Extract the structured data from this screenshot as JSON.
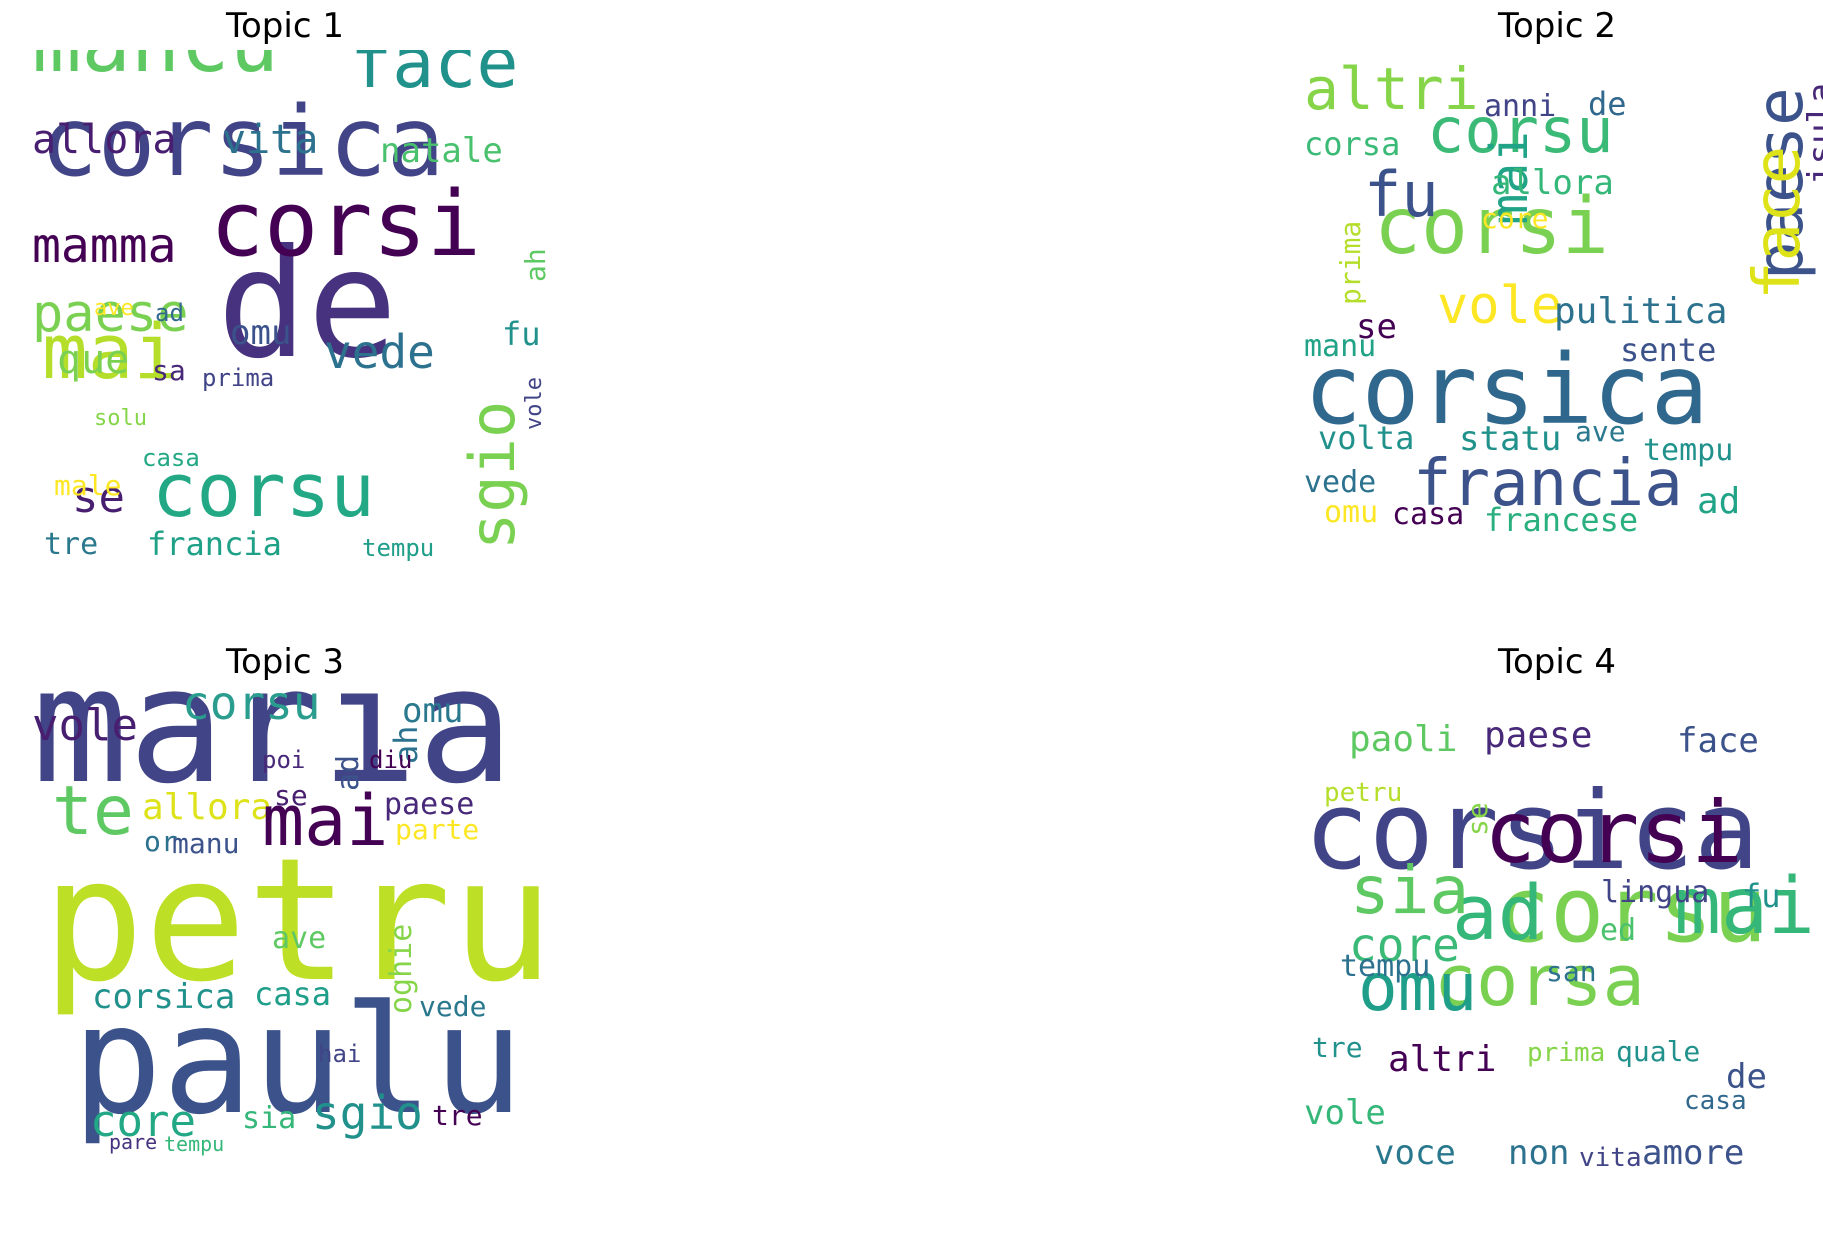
{
  "panels": [
    {
      "title": "Topic 1",
      "words": [
        {
          "text": "de",
          "color": "#46327e"
        },
        {
          "text": "corsica",
          "color": "#414487"
        },
        {
          "text": "corsi",
          "color": "#440154"
        },
        {
          "text": "mancu",
          "color": "#5ec962"
        },
        {
          "text": "face",
          "color": "#21918c"
        },
        {
          "text": "corsu",
          "color": "#22a884"
        },
        {
          "text": "mai",
          "color": "#b5de2b"
        },
        {
          "text": "sgio",
          "color": "#7ad151"
        },
        {
          "text": "paese",
          "color": "#7ad151"
        },
        {
          "text": "mamma",
          "color": "#440154"
        },
        {
          "text": "allora",
          "color": "#481f70"
        },
        {
          "text": "vita",
          "color": "#2c728e"
        },
        {
          "text": "natale",
          "color": "#4ac16d"
        },
        {
          "text": "vede",
          "color": "#2c728e"
        },
        {
          "text": "que",
          "color": "#7ad151"
        },
        {
          "text": "omu",
          "color": "#3b528b"
        },
        {
          "text": "se",
          "color": "#481f70"
        },
        {
          "text": "fu",
          "color": "#21918c"
        },
        {
          "text": "ah",
          "color": "#5ec962"
        },
        {
          "text": "ave",
          "color": "#fde725"
        },
        {
          "text": "ad",
          "color": "#31688e"
        },
        {
          "text": "sa",
          "color": "#482878"
        },
        {
          "text": "prima",
          "color": "#414487"
        },
        {
          "text": "solu",
          "color": "#86d549"
        },
        {
          "text": "vole",
          "color": "#414487"
        },
        {
          "text": "male",
          "color": "#fde725"
        },
        {
          "text": "casa",
          "color": "#22a884"
        },
        {
          "text": "tre",
          "color": "#2a788e"
        },
        {
          "text": "francia",
          "color": "#1fa187"
        },
        {
          "text": "tempu",
          "color": "#1f9e89"
        }
      ]
    },
    {
      "title": "Topic 2",
      "words": [
        {
          "text": "corsica",
          "color": "#30678d"
        },
        {
          "text": "corsu",
          "color": "#3aba76"
        },
        {
          "text": "corsi",
          "color": "#7ad151"
        },
        {
          "text": "altri",
          "color": "#86d549"
        },
        {
          "text": "paese",
          "color": "#3b528b"
        },
        {
          "text": "face",
          "color": "#dde318"
        },
        {
          "text": "fu",
          "color": "#3b528b"
        },
        {
          "text": "mai",
          "color": "#20a386"
        },
        {
          "text": "vole",
          "color": "#fde725"
        },
        {
          "text": "pulitica",
          "color": "#2c728e"
        },
        {
          "text": "francia",
          "color": "#3b528b"
        },
        {
          "text": "anni",
          "color": "#414487"
        },
        {
          "text": "de",
          "color": "#31688e"
        },
        {
          "text": "isula",
          "color": "#482878"
        },
        {
          "text": "corsa",
          "color": "#3aba76"
        },
        {
          "text": "allora",
          "color": "#35b779"
        },
        {
          "text": "core",
          "color": "#fde725"
        },
        {
          "text": "prima",
          "color": "#b5de2b"
        },
        {
          "text": "se",
          "color": "#440154"
        },
        {
          "text": "manu",
          "color": "#20a386"
        },
        {
          "text": "sente",
          "color": "#3b528b"
        },
        {
          "text": "volta",
          "color": "#21918c"
        },
        {
          "text": "statu",
          "color": "#21918c"
        },
        {
          "text": "ave",
          "color": "#2a788e"
        },
        {
          "text": "tempu",
          "color": "#21918c"
        },
        {
          "text": "vede",
          "color": "#2c728e"
        },
        {
          "text": "omu",
          "color": "#fde725"
        },
        {
          "text": "casa",
          "color": "#440154"
        },
        {
          "text": "francese",
          "color": "#2ab07f"
        },
        {
          "text": "ad",
          "color": "#20a386"
        }
      ]
    },
    {
      "title": "Topic 3",
      "words": [
        {
          "text": "maria",
          "color": "#414487"
        },
        {
          "text": "petru",
          "color": "#bddf26"
        },
        {
          "text": "paulu",
          "color": "#3b528b"
        },
        {
          "text": "corsu",
          "color": "#2a9d8f"
        },
        {
          "text": "vole",
          "color": "#481f70"
        },
        {
          "text": "omu",
          "color": "#2a788e"
        },
        {
          "text": "te",
          "color": "#5ec962"
        },
        {
          "text": "allora",
          "color": "#dde318"
        },
        {
          "text": "mai",
          "color": "#440154"
        },
        {
          "text": "paese",
          "color": "#482878"
        },
        {
          "text": "parte",
          "color": "#fde725"
        },
        {
          "text": "ah",
          "color": "#2c728e"
        },
        {
          "text": "poi",
          "color": "#482878"
        },
        {
          "text": "ad",
          "color": "#3b528b"
        },
        {
          "text": "diu",
          "color": "#440154"
        },
        {
          "text": "se",
          "color": "#481f70"
        },
        {
          "text": "or",
          "color": "#2c728e"
        },
        {
          "text": "manu",
          "color": "#3b528b"
        },
        {
          "text": "ave",
          "color": "#5ec962"
        },
        {
          "text": "corsica",
          "color": "#21918c"
        },
        {
          "text": "casa",
          "color": "#1f9e89"
        },
        {
          "text": "oghie",
          "color": "#86d549"
        },
        {
          "text": "vede",
          "color": "#2a788e"
        },
        {
          "text": "hai",
          "color": "#414487"
        },
        {
          "text": "core",
          "color": "#22a884"
        },
        {
          "text": "sgio",
          "color": "#21918c"
        },
        {
          "text": "sia",
          "color": "#35b779"
        },
        {
          "text": "tre",
          "color": "#440154"
        },
        {
          "text": "pare",
          "color": "#46327e"
        },
        {
          "text": "tempu",
          "color": "#35b779"
        }
      ]
    },
    {
      "title": "Topic 4",
      "words": [
        {
          "text": "corsica",
          "color": "#414487"
        },
        {
          "text": "corsu",
          "color": "#7ad151"
        },
        {
          "text": "corsi",
          "color": "#440154"
        },
        {
          "text": "ad",
          "color": "#35b779"
        },
        {
          "text": "corsa",
          "color": "#7ad151"
        },
        {
          "text": "omu",
          "color": "#1f9e89"
        },
        {
          "text": "mai",
          "color": "#35b779"
        },
        {
          "text": "sia",
          "color": "#5ec962"
        },
        {
          "text": "core",
          "color": "#3aba76"
        },
        {
          "text": "paoli",
          "color": "#5ec962"
        },
        {
          "text": "paese",
          "color": "#482878"
        },
        {
          "text": "face",
          "color": "#3b528b"
        },
        {
          "text": "petru",
          "color": "#b5de2b"
        },
        {
          "text": "se",
          "color": "#86d549"
        },
        {
          "text": "lingua",
          "color": "#414487"
        },
        {
          "text": "fu",
          "color": "#21918c"
        },
        {
          "text": "ed",
          "color": "#4ac16d"
        },
        {
          "text": "tempu",
          "color": "#2c728e"
        },
        {
          "text": "san",
          "color": "#2c728e"
        },
        {
          "text": "tre",
          "color": "#21918c"
        },
        {
          "text": "altri",
          "color": "#440154"
        },
        {
          "text": "prima",
          "color": "#86d549"
        },
        {
          "text": "quale",
          "color": "#21918c"
        },
        {
          "text": "de",
          "color": "#3b528b"
        },
        {
          "text": "casa",
          "color": "#31688e"
        },
        {
          "text": "vole",
          "color": "#35b779"
        },
        {
          "text": "voce",
          "color": "#2a788e"
        },
        {
          "text": "non",
          "color": "#2c728e"
        },
        {
          "text": "vita",
          "color": "#414487"
        },
        {
          "text": "amore",
          "color": "#3b528b"
        }
      ]
    }
  ]
}
